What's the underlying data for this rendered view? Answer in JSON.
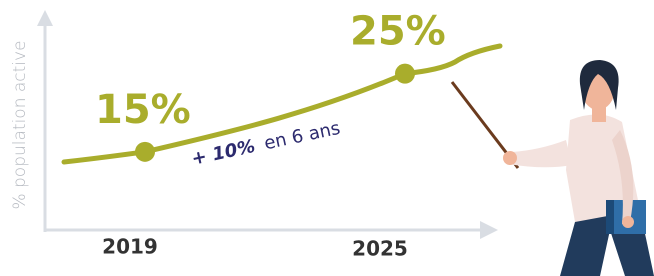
{
  "chart_data": {
    "type": "line",
    "y_label": "% population active",
    "categories": [
      "2019",
      "2025"
    ],
    "values": [
      15,
      25
    ],
    "value_labels": [
      "15%",
      "25%"
    ],
    "color": "#a9ad2c",
    "ylim": [
      5,
      32.5
    ],
    "annotation": {
      "emphasis": "+ 10%",
      "text": "en 6 ans"
    }
  }
}
